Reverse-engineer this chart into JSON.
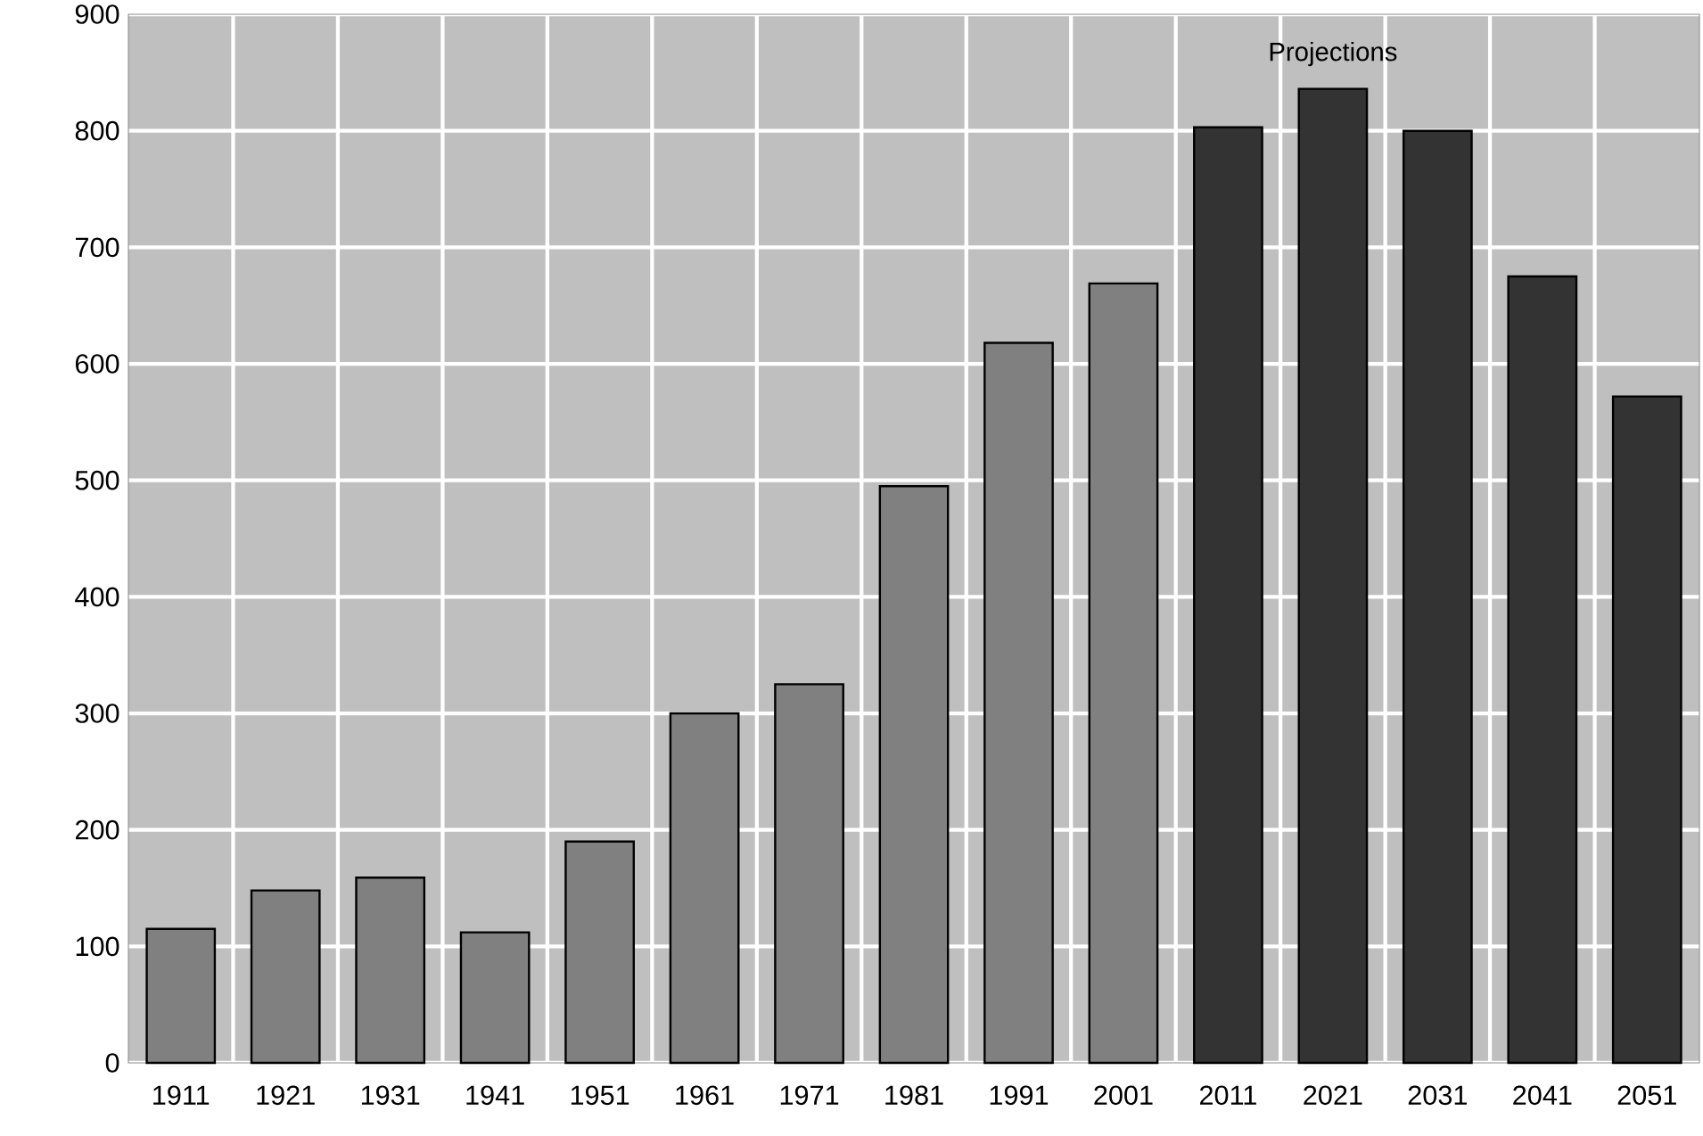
{
  "chart_data": {
    "type": "bar",
    "categories": [
      "1911",
      "1921",
      "1931",
      "1941",
      "1951",
      "1961",
      "1971",
      "1981",
      "1991",
      "2001",
      "2011",
      "2021",
      "2031",
      "2041",
      "2051"
    ],
    "values": [
      115,
      148,
      159,
      112,
      190,
      300,
      325,
      495,
      618,
      669,
      803,
      836,
      800,
      675,
      572
    ],
    "colors": [
      "#808080",
      "#808080",
      "#808080",
      "#808080",
      "#808080",
      "#808080",
      "#808080",
      "#808080",
      "#808080",
      "#808080",
      "#333333",
      "#333333",
      "#333333",
      "#333333",
      "#333333"
    ],
    "ylim": [
      0,
      900
    ],
    "yticks": [
      0,
      100,
      200,
      300,
      400,
      500,
      600,
      700,
      800,
      900
    ],
    "grid": true,
    "annotations": [
      "Projections"
    ]
  }
}
